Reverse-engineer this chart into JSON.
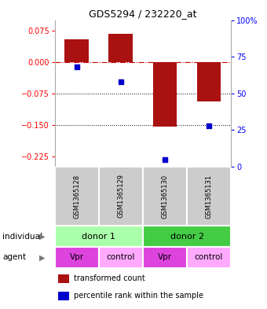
{
  "title": "GDS5294 / 232220_at",
  "bar_values": [
    0.055,
    0.068,
    -0.155,
    -0.095
  ],
  "percentile_values": [
    68,
    58,
    5,
    28
  ],
  "sample_labels": [
    "GSM1365128",
    "GSM1365129",
    "GSM1365130",
    "GSM1365131"
  ],
  "individual_labels": [
    "donor 1",
    "donor 2"
  ],
  "agent_labels": [
    "Vpr",
    "control",
    "Vpr",
    "control"
  ],
  "bar_color": "#aa1111",
  "percentile_color": "#0000cc",
  "ylim_left": [
    -0.25,
    0.1
  ],
  "ylim_right": [
    0,
    100
  ],
  "yticks_left": [
    0.075,
    0,
    -0.075,
    -0.15,
    -0.225
  ],
  "yticks_right": [
    100,
    75,
    50,
    25,
    0
  ],
  "hline_y": 0,
  "dotted_lines": [
    -0.075,
    -0.15
  ],
  "individual_colors": [
    "#aaffaa",
    "#44cc44"
  ],
  "agent_color_vpr": "#dd44dd",
  "agent_color_control": "#ffaaff",
  "sample_bg": "#cccccc",
  "bar_width": 0.55,
  "legend_items": [
    {
      "color": "#aa1111",
      "label": "transformed count"
    },
    {
      "color": "#0000cc",
      "label": "percentile rank within the sample"
    }
  ]
}
